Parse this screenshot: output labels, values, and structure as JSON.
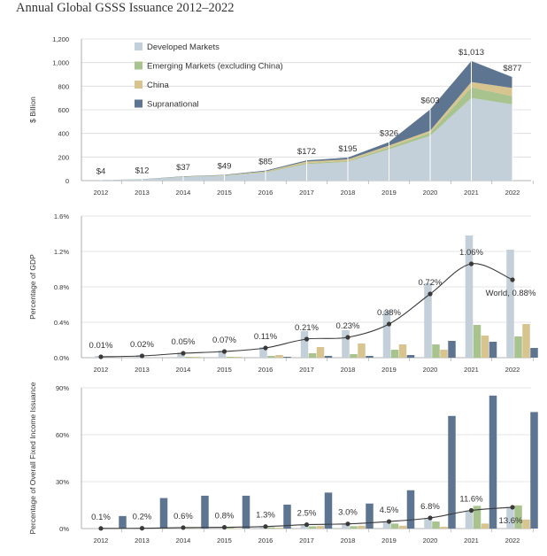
{
  "title": "Annual Global GSSS Issuance 2012–2022",
  "colors": {
    "developed": "#c3cfd9",
    "emerging": "#a8c38d",
    "china": "#d7c48f",
    "supranational": "#5d7591",
    "line": "#3a3a3a",
    "grid": "#dcdcdc",
    "axis": "#9a9a9a",
    "text": "#333333"
  },
  "chart_data": [
    {
      "type": "area",
      "categories": [
        "2012",
        "2013",
        "2014",
        "2015",
        "2016",
        "2017",
        "2018",
        "2019",
        "2020",
        "2021",
        "2022"
      ],
      "ylabel": "$ Billion",
      "ylim": [
        0,
        1200
      ],
      "yticks": [
        0,
        200,
        400,
        600,
        800,
        1000,
        1200
      ],
      "ytick_labels": [
        "0",
        "200",
        "400",
        "600",
        "800",
        "1,000",
        "1,200"
      ],
      "stacked": true,
      "legend_position": "top-left",
      "series": [
        {
          "name": "Developed Markets",
          "color_key": "developed",
          "values": [
            3,
            10,
            30,
            40,
            68,
            140,
            158,
            265,
            380,
            700,
            645
          ]
        },
        {
          "name": "Emerging Markets (excluding China)",
          "color_key": "emerging",
          "values": [
            0,
            1,
            3,
            3,
            5,
            8,
            8,
            15,
            25,
            90,
            70
          ]
        },
        {
          "name": "China",
          "color_key": "china",
          "values": [
            0,
            0,
            1,
            3,
            6,
            14,
            14,
            17,
            18,
            45,
            70
          ]
        },
        {
          "name": "Supranational",
          "color_key": "supranational",
          "values": [
            1,
            1,
            3,
            3,
            6,
            10,
            15,
            29,
            180,
            178,
            92
          ]
        }
      ],
      "total_labels": [
        "$4",
        "$12",
        "$37",
        "$49",
        "$85",
        "$172",
        "$195",
        "$326",
        "$603",
        "$1,013",
        "$877"
      ],
      "totals": [
        4,
        12,
        37,
        49,
        85,
        172,
        195,
        326,
        603,
        1013,
        877
      ]
    },
    {
      "type": "bar",
      "categories": [
        "2012",
        "2013",
        "2014",
        "2015",
        "2016",
        "2017",
        "2018",
        "2019",
        "2020",
        "2021",
        "2022"
      ],
      "ylabel": "Percentage of GDP",
      "ylim": [
        0,
        1.6
      ],
      "yticks": [
        0,
        0.4,
        0.8,
        1.2,
        1.6
      ],
      "ytick_labels": [
        "0.0%",
        "0.4%",
        "0.8%",
        "1.2%",
        "1.6%"
      ],
      "series": [
        {
          "name": "Developed Markets",
          "color_key": "developed",
          "values": [
            0.02,
            0.03,
            0.06,
            0.08,
            0.12,
            0.3,
            0.31,
            0.53,
            0.84,
            1.38,
            1.22
          ]
        },
        {
          "name": "Emerging Markets (excluding China)",
          "color_key": "emerging",
          "values": [
            0,
            0,
            0.01,
            0.01,
            0.02,
            0.05,
            0.04,
            0.09,
            0.15,
            0.37,
            0.24
          ]
        },
        {
          "name": "China",
          "color_key": "china",
          "values": [
            0,
            0,
            0.01,
            0.01,
            0.03,
            0.12,
            0.16,
            0.15,
            0.09,
            0.25,
            0.38
          ]
        },
        {
          "name": "Supranational",
          "color_key": "supranational",
          "values": [
            0,
            0,
            0,
            0,
            0.01,
            0.02,
            0.02,
            0.03,
            0.19,
            0.18,
            0.11
          ]
        }
      ],
      "line": {
        "name": "World",
        "values": [
          0.01,
          0.02,
          0.05,
          0.07,
          0.11,
          0.21,
          0.23,
          0.38,
          0.72,
          1.06,
          0.88
        ],
        "labels": [
          "0.01%",
          "0.02%",
          "0.05%",
          "0.07%",
          "0.11%",
          "0.21%",
          "0.23%",
          "0.38%",
          "0.72%",
          "1.06%",
          "World, 0.88%"
        ]
      }
    },
    {
      "type": "bar",
      "categories": [
        "2012",
        "2013",
        "2014",
        "2015",
        "2016",
        "2017",
        "2018",
        "2019",
        "2020",
        "2021",
        "2022"
      ],
      "ylabel": "Percentage of Overall Fixed Income Issuance",
      "ylim": [
        0,
        90
      ],
      "yticks": [
        0,
        30,
        60,
        90
      ],
      "ytick_labels": [
        "0%",
        "30%",
        "60%",
        "90%"
      ],
      "series": [
        {
          "name": "Developed Markets",
          "color_key": "developed",
          "values": [
            0.1,
            0.2,
            0.6,
            0.8,
            1.2,
            2.4,
            2.9,
            4.4,
            6.8,
            11.5,
            13.7
          ]
        },
        {
          "name": "Emerging Markets (excluding China)",
          "color_key": "emerging",
          "values": [
            0.1,
            0.1,
            0.4,
            0.6,
            0.8,
            1.4,
            1.5,
            3.2,
            4.5,
            14.5,
            14.8
          ]
        },
        {
          "name": "China",
          "color_key": "china",
          "values": [
            0,
            0,
            0.2,
            0.2,
            0.5,
            1.6,
            1.8,
            1.8,
            1.2,
            3.2,
            5.8
          ]
        },
        {
          "name": "Supranational",
          "color_key": "supranational",
          "values": [
            8,
            19.5,
            21,
            21,
            15.3,
            23,
            16,
            24.5,
            72,
            85,
            74.5
          ]
        }
      ],
      "line": {
        "name": "World",
        "values": [
          0.1,
          0.2,
          0.6,
          0.8,
          1.3,
          2.5,
          3.0,
          4.5,
          6.8,
          11.6,
          13.6
        ],
        "labels": [
          "0.1%",
          "0.2%",
          "0.6%",
          "0.8%",
          "1.3%",
          "2.5%",
          "3.0%",
          "4.5%",
          "6.8%",
          "11.6%",
          "13.6%"
        ]
      }
    }
  ]
}
